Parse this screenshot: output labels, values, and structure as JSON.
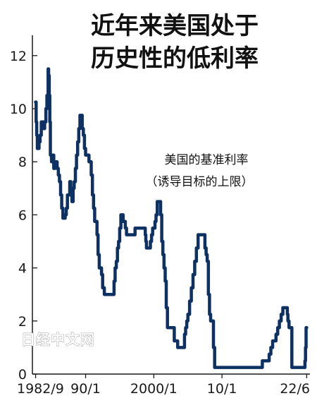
{
  "title_lines": [
    "近年来美国处于",
    "历史性的低利率"
  ],
  "watermark": "日经中文网",
  "colors": {
    "line": "#0e3163",
    "axis": "#1a1a1a",
    "text": "#111111"
  },
  "chart_data": {
    "type": "line",
    "title": "近年来美国处于历史性的低利率",
    "annotation": [
      "美国的基准利率",
      "（诱导目标的上限）"
    ],
    "xlabel": "",
    "ylabel": "",
    "ylim": [
      0,
      12.5
    ],
    "xlim": [
      1982.2,
      2022.9
    ],
    "yticks": [
      0,
      2,
      4,
      6,
      8,
      10,
      12
    ],
    "xticks": [
      {
        "label": "1982/9",
        "value": 1982.67
      },
      {
        "label": "90/1",
        "value": 1990.0
      },
      {
        "label": "2000/1",
        "value": 2000.0
      },
      {
        "label": "10/1",
        "value": 2010.0
      },
      {
        "label": "22/6",
        "value": 2022.42
      }
    ],
    "series": [
      {
        "x": [
          1982.67,
          1982.75,
          1982.83,
          1982.92,
          1983.0,
          1983.17,
          1983.33,
          1983.5,
          1983.67,
          1983.83,
          1984.0,
          1984.17,
          1984.33,
          1984.5,
          1984.58,
          1984.67,
          1984.75,
          1984.83,
          1985.0,
          1985.17,
          1985.33,
          1985.5,
          1985.67,
          1985.83,
          1986.0,
          1986.17,
          1986.33,
          1986.5,
          1986.67,
          1986.83,
          1987.0,
          1987.17,
          1987.33,
          1987.5,
          1987.67,
          1987.83,
          1988.0,
          1988.17,
          1988.33,
          1988.5,
          1988.67,
          1988.83,
          1989.0,
          1989.17,
          1989.33,
          1989.5,
          1989.67,
          1989.83,
          1990.0,
          1990.17,
          1990.33,
          1990.5,
          1990.67,
          1990.83,
          1991.0,
          1991.17,
          1991.33,
          1991.5,
          1991.67,
          1991.83,
          1992.0,
          1992.17,
          1992.33,
          1992.5,
          1992.75,
          1993.0,
          1993.5,
          1994.0,
          1994.17,
          1994.33,
          1994.5,
          1994.67,
          1994.83,
          1995.0,
          1995.17,
          1995.5,
          1995.83,
          1996.0,
          1996.5,
          1997.0,
          1997.25,
          1997.5,
          1998.0,
          1998.5,
          1998.75,
          1998.83,
          1998.92,
          1999.0,
          1999.5,
          1999.67,
          1999.83,
          2000.0,
          2000.17,
          2000.33,
          2000.5,
          2000.83,
          2001.0,
          2001.17,
          2001.33,
          2001.5,
          2001.67,
          2001.83,
          2002.0,
          2002.5,
          2002.83,
          2003.0,
          2003.5,
          2004.0,
          2004.5,
          2004.67,
          2004.83,
          2005.0,
          2005.25,
          2005.5,
          2005.75,
          2006.0,
          2006.25,
          2006.5,
          2006.75,
          2007.0,
          2007.5,
          2007.67,
          2007.83,
          2008.0,
          2008.17,
          2008.33,
          2008.5,
          2008.75,
          2008.92,
          2009.0,
          2010.0,
          2011.0,
          2012.0,
          2013.0,
          2014.0,
          2015.0,
          2015.92,
          2016.0,
          2016.5,
          2016.92,
          2017.0,
          2017.17,
          2017.42,
          2017.67,
          2017.92,
          2018.17,
          2018.42,
          2018.67,
          2018.92,
          2019.0,
          2019.5,
          2019.58,
          2019.67,
          2019.83,
          2020.0,
          2020.17,
          2020.25,
          2020.5,
          2021.0,
          2021.5,
          2022.0,
          2022.17,
          2022.25,
          2022.33,
          2022.42
        ],
        "values": [
          10.25,
          9.5,
          9.0,
          8.5,
          8.5,
          8.75,
          9.0,
          9.5,
          9.5,
          9.25,
          9.5,
          10.0,
          10.5,
          11.5,
          11.25,
          10.5,
          9.5,
          8.25,
          8.0,
          8.25,
          7.75,
          8.0,
          8.0,
          7.75,
          7.5,
          7.25,
          6.75,
          6.25,
          5.875,
          5.875,
          6.0,
          6.25,
          6.75,
          6.75,
          7.25,
          6.75,
          6.5,
          7.0,
          7.25,
          7.75,
          8.25,
          8.75,
          9.25,
          9.75,
          9.75,
          9.25,
          9.0,
          8.5,
          8.25,
          8.25,
          8.25,
          8.0,
          8.0,
          7.5,
          6.75,
          6.25,
          5.75,
          5.75,
          5.25,
          4.5,
          4.0,
          4.0,
          3.75,
          3.25,
          3.0,
          3.0,
          3.0,
          3.0,
          3.5,
          4.0,
          4.25,
          4.75,
          5.0,
          5.5,
          6.0,
          5.75,
          5.5,
          5.25,
          5.25,
          5.25,
          5.5,
          5.5,
          5.5,
          5.5,
          5.25,
          5.0,
          4.75,
          4.75,
          5.0,
          5.25,
          5.5,
          5.5,
          5.75,
          6.0,
          6.5,
          6.5,
          6.0,
          5.0,
          4.5,
          4.0,
          3.5,
          2.5,
          1.75,
          1.75,
          1.75,
          1.25,
          1.0,
          1.0,
          1.5,
          1.75,
          2.0,
          2.25,
          2.75,
          3.25,
          3.75,
          4.25,
          4.75,
          5.25,
          5.25,
          5.25,
          4.75,
          4.5,
          4.25,
          3.0,
          2.25,
          2.0,
          2.0,
          1.0,
          0.25,
          0.25,
          0.25,
          0.25,
          0.25,
          0.25,
          0.25,
          0.25,
          0.5,
          0.5,
          0.5,
          0.75,
          0.75,
          1.0,
          1.25,
          1.25,
          1.5,
          1.75,
          2.0,
          2.25,
          2.5,
          2.5,
          2.5,
          2.25,
          2.0,
          1.75,
          1.75,
          1.75,
          0.25,
          0.25,
          0.25,
          0.25,
          0.25,
          0.5,
          1.0,
          1.75,
          1.75
        ]
      }
    ]
  }
}
